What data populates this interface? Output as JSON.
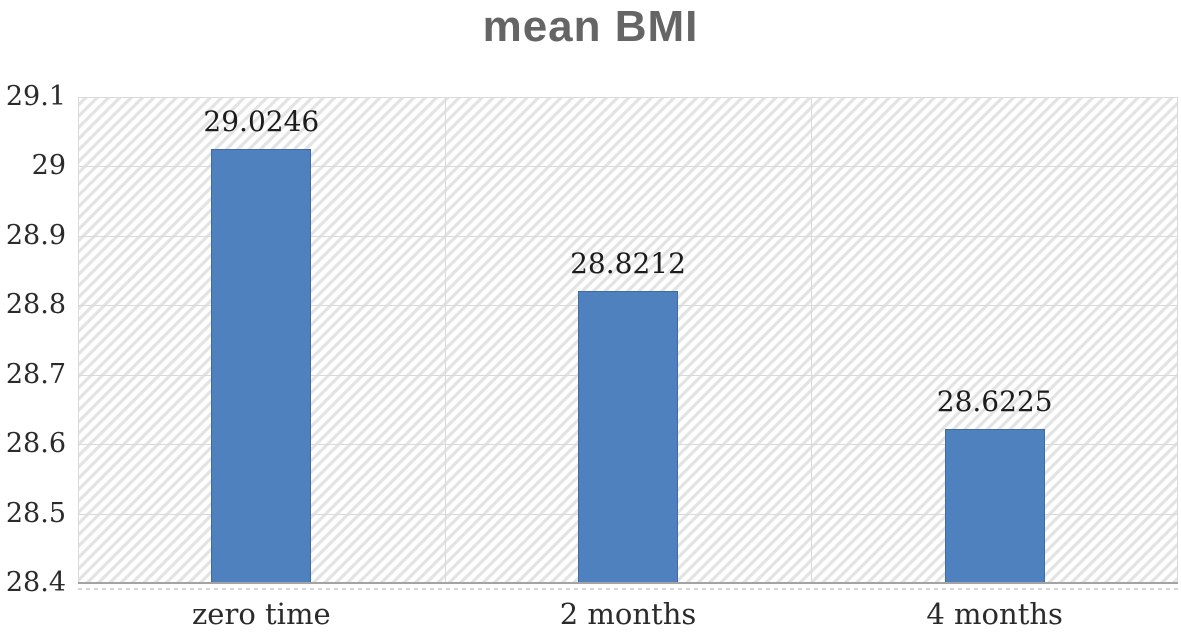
{
  "chart_data": {
    "type": "bar",
    "title": "mean BMI",
    "categories": [
      "zero time",
      "2 months",
      "4 months"
    ],
    "values": [
      29.0246,
      28.8212,
      28.6225
    ],
    "data_labels": [
      "29.0246",
      "28.8212",
      "28.6225"
    ],
    "xlabel": "",
    "ylabel": "",
    "ylim": [
      28.4,
      29.1
    ],
    "ytick_step": 0.1,
    "ytick_labels": [
      "29.1",
      "29",
      "28.9",
      "28.8",
      "28.7",
      "28.6",
      "28.5",
      "28.4"
    ],
    "legend": null,
    "grid": {
      "horizontal_major": true,
      "vertical_category_separators": true
    },
    "plot_background": "light-upward-diagonal-hatch",
    "colors": {
      "bar_fill": "#4e81bd",
      "bar_border": "#3c6ba5",
      "title_text": "#656565",
      "axis_text": "#2b2b2b",
      "data_label_text": "#1c1c1c",
      "gridline": "#d9d9d9",
      "axis_line": "#a3a3a3",
      "hatch_stripe": "#e3e3e3"
    }
  }
}
